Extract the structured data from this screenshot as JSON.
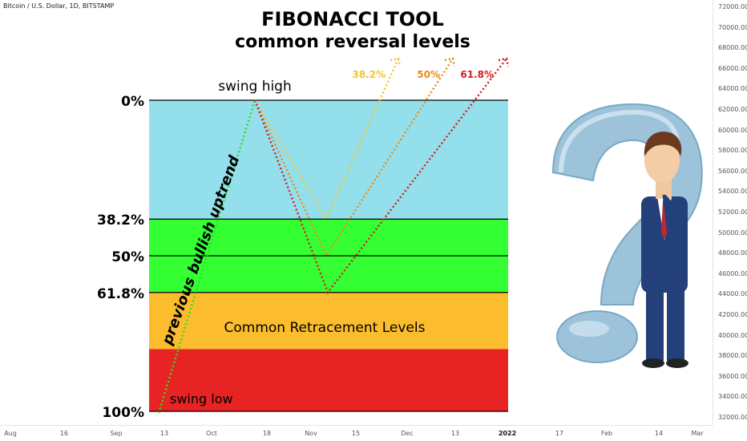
{
  "header": {
    "symbol": "Bitcoin / U.S. Dollar, 1D, BITSTAMP",
    "title_line1": "FIBONACCI TOOL",
    "title_line2": "common reversal levels"
  },
  "price_axis": {
    "ticks": [
      "72000.00",
      "70000.00",
      "68000.00",
      "66000.00",
      "64000.00",
      "62000.00",
      "60000.00",
      "58000.00",
      "56000.00",
      "54000.00",
      "52000.00",
      "50000.00",
      "48000.00",
      "46000.00",
      "44000.00",
      "42000.00",
      "40000.00",
      "38000.00",
      "36000.00",
      "34000.00",
      "32000.00"
    ]
  },
  "time_axis": {
    "ticks": [
      {
        "label": "Aug",
        "bold": false
      },
      {
        "label": "16",
        "bold": false
      },
      {
        "label": "Sep",
        "bold": false
      },
      {
        "label": "13",
        "bold": false
      },
      {
        "label": "Oct",
        "bold": false
      },
      {
        "label": "18",
        "bold": false
      },
      {
        "label": "Nov",
        "bold": false
      },
      {
        "label": "15",
        "bold": false
      },
      {
        "label": "Dec",
        "bold": false
      },
      {
        "label": "13",
        "bold": false
      },
      {
        "label": "2022",
        "bold": true
      },
      {
        "label": "17",
        "bold": false
      },
      {
        "label": "Feb",
        "bold": false
      },
      {
        "label": "14",
        "bold": false
      },
      {
        "label": "Mar",
        "bold": false
      }
    ]
  },
  "chart_data": {
    "type": "area",
    "title": "FIBONACCI TOOL common reversal levels",
    "level_labels": [
      "0%",
      "38.2%",
      "50%",
      "61.8%",
      "100%"
    ],
    "level_fractions": [
      0,
      0.382,
      0.5,
      0.618,
      1.0
    ],
    "zones": [
      {
        "from": 0,
        "to": 0.382,
        "color": "#93e0ec"
      },
      {
        "from": 0.382,
        "to": 0.618,
        "color": "#33ff33"
      },
      {
        "from": 0.618,
        "to": 0.8,
        "color": "#fbbd2e"
      },
      {
        "from": 0.8,
        "to": 1.0,
        "color": "#e82323"
      }
    ],
    "annotations": {
      "swing_high": "swing high",
      "swing_low": "swing low",
      "uptrend": "previous bullish uptrend",
      "zone_label": "Common Retracement Levels"
    },
    "paths": [
      {
        "name": "38.2%",
        "color": "#f3c433",
        "retrace": 0.382
      },
      {
        "name": "50%",
        "color": "#ee8a14",
        "retrace": 0.5
      },
      {
        "name": "61.8%",
        "color": "#d42020",
        "retrace": 0.618
      }
    ],
    "uptrend_color": "#33dd22"
  }
}
